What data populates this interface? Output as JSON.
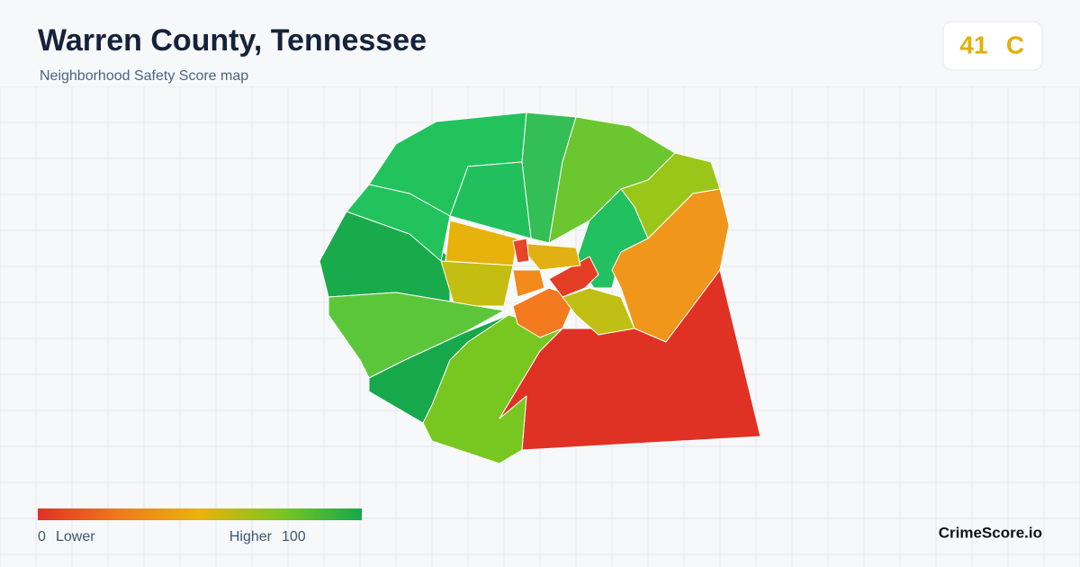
{
  "header": {
    "title": "Warren County, Tennessee",
    "subtitle": "Neighborhood Safety Score map"
  },
  "score": {
    "value": 41,
    "grade": "C"
  },
  "legend": {
    "min": 0,
    "min_label": "Lower",
    "max_label": "Higher",
    "max": 100
  },
  "brand": "CrimeScore.io"
}
